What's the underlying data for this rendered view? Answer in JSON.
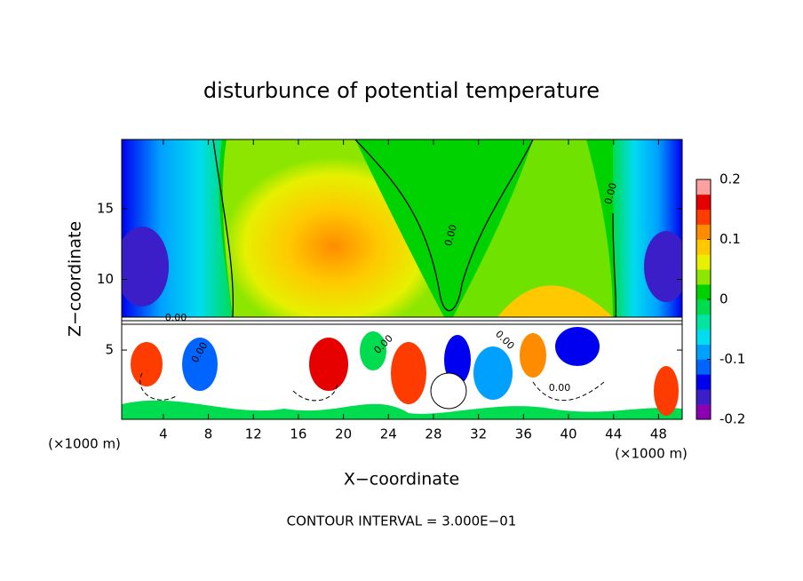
{
  "chart_data": {
    "type": "contour",
    "title": "disturbunce of potential temperature",
    "xlabel": "X−coordinate",
    "ylabel": "Z−coordinate",
    "x_unit_left": "(×1000 m)",
    "x_unit_right": "(×1000 m)",
    "footer": "CONTOUR INTERVAL = 3.000E−01",
    "xlim": [
      0.3,
      50.1
    ],
    "ylim": [
      0.1,
      19.9
    ],
    "xticks": [
      4,
      8,
      12,
      16,
      20,
      24,
      28,
      32,
      36,
      40,
      44,
      48
    ],
    "yticks": [
      5,
      10,
      15
    ],
    "clim": [
      -0.2,
      0.2
    ],
    "cticks": [
      0.2,
      0.1,
      0,
      -0.1,
      -0.2
    ],
    "colorbar_colors": [
      "#8c00b4",
      "#3c1ec8",
      "#0000f0",
      "#0064ff",
      "#00a0ff",
      "#00dcf0",
      "#00e6a0",
      "#00dc50",
      "#00d200",
      "#8ce600",
      "#e6f000",
      "#ffc800",
      "#ff8c00",
      "#ff3c00",
      "#e60000",
      "#ffa0a0"
    ],
    "contour_labels": [
      "0.00",
      "0.00",
      "0.00",
      "0.00",
      "0.00",
      "0.00",
      "0.00"
    ]
  }
}
